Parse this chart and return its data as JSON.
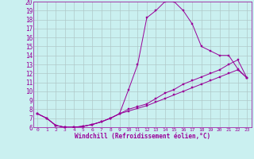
{
  "xlabel": "Windchill (Refroidissement éolien,°C)",
  "bg_color": "#caf0f0",
  "line_color": "#990099",
  "grid_color": "#b0c8c8",
  "xlim": [
    -0.5,
    23.5
  ],
  "ylim": [
    6,
    20
  ],
  "yticks": [
    6,
    7,
    8,
    9,
    10,
    11,
    12,
    13,
    14,
    15,
    16,
    17,
    18,
    19,
    20
  ],
  "xticks": [
    0,
    1,
    2,
    3,
    4,
    5,
    6,
    7,
    8,
    9,
    10,
    11,
    12,
    13,
    14,
    15,
    16,
    17,
    18,
    19,
    20,
    21,
    22,
    23
  ],
  "curve1_x": [
    0,
    1,
    2,
    3,
    4,
    5,
    6,
    7,
    8,
    9,
    10,
    11,
    12,
    13,
    14,
    15,
    16,
    17,
    18,
    19,
    20,
    21,
    22,
    23
  ],
  "curve1_y": [
    7.5,
    7.0,
    6.2,
    6.0,
    6.0,
    6.1,
    6.3,
    6.6,
    7.0,
    7.5,
    10.2,
    13.0,
    18.2,
    19.0,
    20.0,
    20.0,
    19.0,
    17.5,
    15.0,
    14.5,
    14.0,
    14.0,
    12.5,
    11.5
  ],
  "curve2_x": [
    0,
    1,
    2,
    3,
    4,
    5,
    6,
    7,
    8,
    9,
    10,
    11,
    12,
    13,
    14,
    15,
    16,
    17,
    18,
    19,
    20,
    21,
    22,
    23
  ],
  "curve2_y": [
    7.5,
    7.0,
    6.2,
    6.0,
    6.0,
    6.1,
    6.3,
    6.6,
    7.0,
    7.5,
    8.0,
    8.3,
    8.6,
    9.2,
    9.8,
    10.2,
    10.8,
    11.2,
    11.6,
    12.0,
    12.4,
    13.0,
    13.5,
    11.5
  ],
  "curve3_x": [
    0,
    1,
    2,
    3,
    4,
    5,
    6,
    7,
    8,
    9,
    10,
    11,
    12,
    13,
    14,
    15,
    16,
    17,
    18,
    19,
    20,
    21,
    22,
    23
  ],
  "curve3_y": [
    7.5,
    7.0,
    6.2,
    6.0,
    6.0,
    6.1,
    6.3,
    6.6,
    7.0,
    7.5,
    7.8,
    8.1,
    8.4,
    8.8,
    9.2,
    9.6,
    10.0,
    10.4,
    10.8,
    11.2,
    11.6,
    12.0,
    12.4,
    11.5
  ]
}
